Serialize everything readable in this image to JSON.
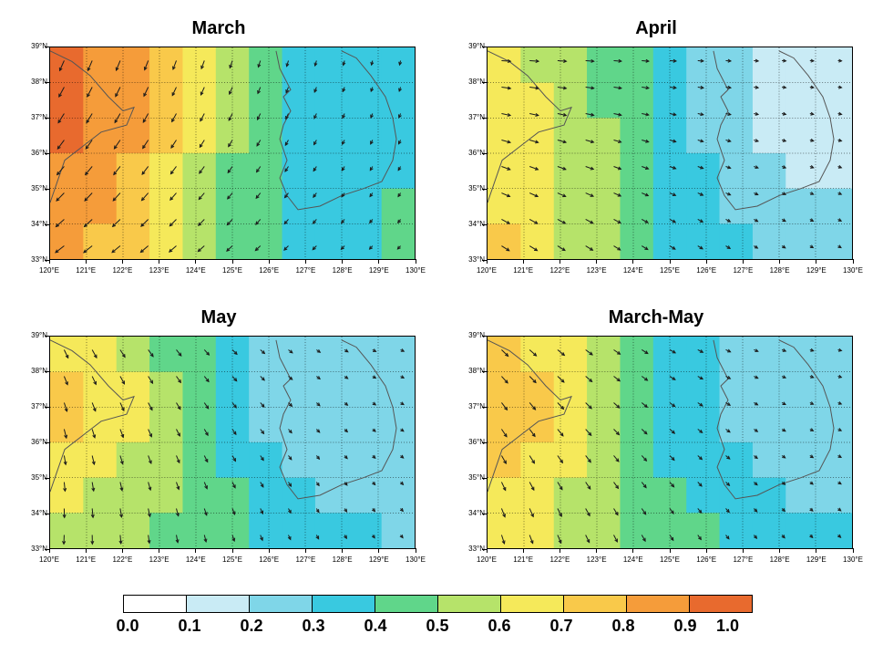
{
  "colors": {
    "scale": [
      "#ffffff",
      "#c9ebf5",
      "#7fd6e8",
      "#39c9e0",
      "#60d68a",
      "#b6e36a",
      "#f5e95a",
      "#f9c94a",
      "#f59c3a",
      "#e86a2e",
      "#c93a24",
      "#7a1a10"
    ],
    "grid": "#000000",
    "coast": "#555555",
    "arrow": "#1a1a1a"
  },
  "axes": {
    "lon_min": 120,
    "lon_max": 130,
    "lon_step": 1,
    "lat_min": 33,
    "lat_max": 39,
    "lat_step": 1,
    "x_suffix": "°E",
    "y_suffix": "°N"
  },
  "colorbar": {
    "ticks": [
      "0.0",
      "0.1",
      "0.2",
      "0.3",
      "0.4",
      "0.5",
      "0.6",
      "0.7",
      "0.8",
      "0.9",
      "1.0"
    ]
  },
  "korea_coast": [
    [
      126.2,
      38.9
    ],
    [
      126.3,
      38.4
    ],
    [
      126.6,
      37.8
    ],
    [
      126.4,
      37.6
    ],
    [
      126.6,
      37.2
    ],
    [
      126.4,
      36.8
    ],
    [
      126.3,
      36.4
    ],
    [
      126.5,
      35.8
    ],
    [
      126.3,
      35.3
    ],
    [
      126.5,
      34.8
    ],
    [
      126.8,
      34.4
    ],
    [
      127.4,
      34.5
    ],
    [
      128.0,
      34.8
    ],
    [
      128.6,
      35.0
    ],
    [
      129.1,
      35.2
    ],
    [
      129.4,
      35.8
    ],
    [
      129.5,
      36.4
    ],
    [
      129.4,
      37.0
    ],
    [
      129.2,
      37.6
    ],
    [
      128.8,
      38.2
    ],
    [
      128.4,
      38.7
    ],
    [
      128.0,
      38.9
    ]
  ],
  "china_coast": [
    [
      120.0,
      38.9
    ],
    [
      120.6,
      38.6
    ],
    [
      121.1,
      38.2
    ],
    [
      121.6,
      37.6
    ],
    [
      122.0,
      37.2
    ],
    [
      122.3,
      37.3
    ],
    [
      122.1,
      36.8
    ],
    [
      121.4,
      36.6
    ],
    [
      120.9,
      36.2
    ],
    [
      120.4,
      35.8
    ],
    [
      120.2,
      35.2
    ],
    [
      120.0,
      34.6
    ]
  ],
  "panels": [
    {
      "title": "March",
      "field_rows": [
        [
          0.92,
          0.9,
          0.85,
          0.8,
          0.72,
          0.62,
          0.52,
          0.44,
          0.38,
          0.36,
          0.38,
          0.42
        ],
        [
          0.94,
          0.92,
          0.86,
          0.78,
          0.7,
          0.6,
          0.5,
          0.42,
          0.34,
          0.32,
          0.36,
          0.4
        ],
        [
          0.95,
          0.93,
          0.88,
          0.78,
          0.68,
          0.58,
          0.48,
          0.4,
          0.32,
          0.3,
          0.34,
          0.4
        ],
        [
          0.93,
          0.9,
          0.84,
          0.74,
          0.64,
          0.54,
          0.46,
          0.38,
          0.32,
          0.3,
          0.34,
          0.4
        ],
        [
          0.88,
          0.86,
          0.8,
          0.72,
          0.62,
          0.52,
          0.44,
          0.38,
          0.34,
          0.32,
          0.36,
          0.42
        ],
        [
          0.84,
          0.82,
          0.76,
          0.68,
          0.6,
          0.52,
          0.46,
          0.4,
          0.36,
          0.36,
          0.4,
          0.44
        ],
        [
          0.8,
          0.78,
          0.72,
          0.66,
          0.58,
          0.52,
          0.46,
          0.42,
          0.4,
          0.4,
          0.42,
          0.46
        ]
      ],
      "arrow_base_angle": 130,
      "arrow_grad_angle": -10,
      "arrow_len": 12
    },
    {
      "title": "April",
      "field_rows": [
        [
          0.6,
          0.58,
          0.54,
          0.5,
          0.44,
          0.38,
          0.32,
          0.26,
          0.22,
          0.18,
          0.16,
          0.18
        ],
        [
          0.62,
          0.62,
          0.58,
          0.52,
          0.46,
          0.38,
          0.3,
          0.24,
          0.2,
          0.16,
          0.14,
          0.16
        ],
        [
          0.64,
          0.64,
          0.6,
          0.54,
          0.46,
          0.38,
          0.3,
          0.24,
          0.18,
          0.16,
          0.14,
          0.16
        ],
        [
          0.66,
          0.64,
          0.6,
          0.54,
          0.46,
          0.38,
          0.32,
          0.26,
          0.22,
          0.18,
          0.16,
          0.18
        ],
        [
          0.7,
          0.66,
          0.6,
          0.54,
          0.46,
          0.4,
          0.34,
          0.28,
          0.24,
          0.2,
          0.18,
          0.2
        ],
        [
          0.74,
          0.68,
          0.62,
          0.54,
          0.46,
          0.4,
          0.36,
          0.32,
          0.28,
          0.24,
          0.22,
          0.22
        ],
        [
          0.78,
          0.7,
          0.62,
          0.54,
          0.48,
          0.42,
          0.38,
          0.34,
          0.3,
          0.28,
          0.26,
          0.24
        ]
      ],
      "arrow_base_angle": 20,
      "arrow_grad_angle": 0,
      "arrow_len": 10
    },
    {
      "title": "May",
      "field_rows": [
        [
          0.68,
          0.64,
          0.58,
          0.52,
          0.44,
          0.36,
          0.3,
          0.26,
          0.24,
          0.22,
          0.22,
          0.24
        ],
        [
          0.72,
          0.7,
          0.64,
          0.56,
          0.46,
          0.38,
          0.3,
          0.26,
          0.22,
          0.2,
          0.2,
          0.22
        ],
        [
          0.74,
          0.72,
          0.66,
          0.58,
          0.48,
          0.38,
          0.3,
          0.26,
          0.22,
          0.2,
          0.2,
          0.22
        ],
        [
          0.72,
          0.7,
          0.64,
          0.56,
          0.48,
          0.4,
          0.32,
          0.28,
          0.24,
          0.22,
          0.22,
          0.24
        ],
        [
          0.66,
          0.64,
          0.6,
          0.54,
          0.48,
          0.42,
          0.36,
          0.32,
          0.28,
          0.26,
          0.26,
          0.26
        ],
        [
          0.6,
          0.58,
          0.56,
          0.52,
          0.48,
          0.44,
          0.4,
          0.36,
          0.32,
          0.3,
          0.28,
          0.28
        ],
        [
          0.56,
          0.54,
          0.52,
          0.5,
          0.48,
          0.46,
          0.42,
          0.38,
          0.36,
          0.34,
          0.32,
          0.3
        ]
      ],
      "arrow_base_angle": 80,
      "arrow_grad_angle": -40,
      "arrow_len": 10
    },
    {
      "title": "March-May",
      "field_rows": [
        [
          0.7,
          0.68,
          0.62,
          0.56,
          0.48,
          0.4,
          0.34,
          0.3,
          0.26,
          0.24,
          0.24,
          0.26
        ],
        [
          0.74,
          0.72,
          0.66,
          0.58,
          0.5,
          0.4,
          0.32,
          0.28,
          0.24,
          0.22,
          0.22,
          0.24
        ],
        [
          0.76,
          0.74,
          0.68,
          0.6,
          0.5,
          0.4,
          0.32,
          0.28,
          0.24,
          0.22,
          0.22,
          0.24
        ],
        [
          0.74,
          0.72,
          0.66,
          0.58,
          0.5,
          0.42,
          0.34,
          0.3,
          0.26,
          0.24,
          0.24,
          0.26
        ],
        [
          0.7,
          0.68,
          0.62,
          0.56,
          0.5,
          0.44,
          0.38,
          0.34,
          0.3,
          0.28,
          0.26,
          0.28
        ],
        [
          0.66,
          0.64,
          0.6,
          0.54,
          0.5,
          0.46,
          0.42,
          0.38,
          0.34,
          0.32,
          0.3,
          0.3
        ],
        [
          0.62,
          0.6,
          0.56,
          0.52,
          0.5,
          0.48,
          0.44,
          0.4,
          0.38,
          0.36,
          0.34,
          0.32
        ]
      ],
      "arrow_base_angle": 60,
      "arrow_grad_angle": -30,
      "arrow_len": 10
    }
  ]
}
